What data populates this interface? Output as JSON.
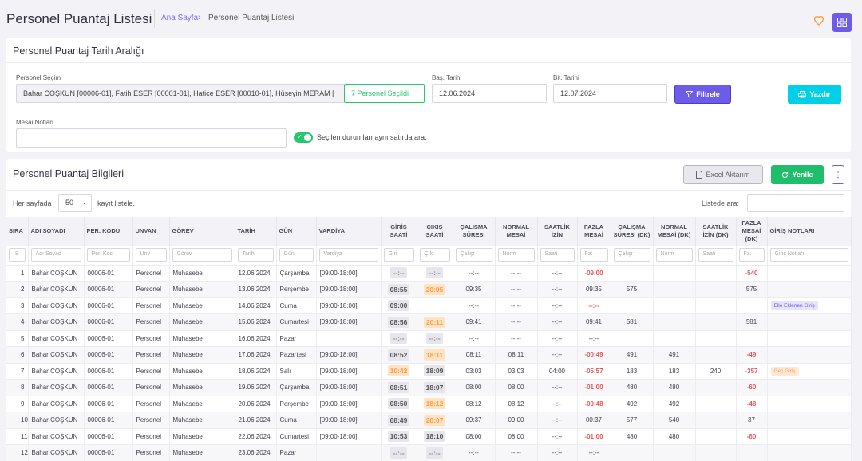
{
  "header": {
    "title": "Personel Puantaj Listesi",
    "breadcrumb": {
      "home": "Ana Sayfa",
      "current": "Personel Puantaj Listesi"
    }
  },
  "filter_card": {
    "title": "Personel Puantaj Tarih Aralığı",
    "personel_label": "Personel Seçim",
    "personel_value": "Bahar COŞKUN [00006-01], Fatih ESER [00001-01], Hatice ESER [00010-01], Hüseyin MERAM [",
    "selected_badge": "7 Personel Seçildi",
    "start_label": "Baş. Tarihi",
    "start_value": "12.06.2024",
    "end_label": "Bit. Tarihi",
    "end_value": "12.07.2024",
    "filter_button": "Filtrele",
    "print_button": "Yazdır",
    "notes_label": "Mesai Notları",
    "notes_value": "",
    "toggle_label": "Seçilen durumları aynı satırda ara.",
    "toggle_on": true
  },
  "info_card": {
    "title": "Personel Puantaj Bilgileri",
    "excel_button": "Excel Aktarım",
    "refresh_button": "Yenile",
    "per_page_prefix": "Her sayfada",
    "per_page_value": "50",
    "per_page_suffix": "kayıt listele.",
    "search_label": "Listede ara:"
  },
  "table": {
    "columns": [
      {
        "label": "SIRA",
        "filter": "S"
      },
      {
        "label": "ADI SOYADI",
        "filter": "Adı Soyad"
      },
      {
        "label": "PER. KODU",
        "filter": "Per. Koc"
      },
      {
        "label": "UNVAN",
        "filter": "Unv"
      },
      {
        "label": "GÖREV",
        "filter": "Görev"
      },
      {
        "label": "TARİH",
        "filter": "Tarih"
      },
      {
        "label": "GÜN",
        "filter": "Gün"
      },
      {
        "label": "VARDİYA",
        "filter": "Vardiya"
      },
      {
        "label": "GİRİŞ SAATİ",
        "filter": "Giri"
      },
      {
        "label": "ÇIKIŞ SAATİ",
        "filter": "Çık"
      },
      {
        "label": "ÇALIŞMA SÜRESİ",
        "filter": "Çalışr"
      },
      {
        "label": "NORMAL MESAİ",
        "filter": "Norm"
      },
      {
        "label": "SAATLİK İZİN",
        "filter": "Saati"
      },
      {
        "label": "FAZLA MESAİ",
        "filter": "Fa:"
      },
      {
        "label": "ÇALIŞMA SÜRESİ (DK)",
        "filter": "Çalışr"
      },
      {
        "label": "NORMAL MESAİ (DK)",
        "filter": "Norm"
      },
      {
        "label": "SAATLİK İZİN (DK)",
        "filter": "Saati"
      },
      {
        "label": "FAZLA MESAİ (DK)",
        "filter": "Fa:"
      },
      {
        "label": "GİRİŞ NOTLARI",
        "filter": "Giriş Notları"
      }
    ],
    "rows": [
      {
        "sira": "1",
        "ad": "Bahar COŞKUN",
        "kod": "00006-01",
        "unvan": "Personel",
        "gorev": "Muhasebe",
        "tarih": "12.06.2024",
        "gun": "Çarşamba",
        "vardiya": "[09:00-18:00]",
        "giris": "--:--",
        "giris_style": "dim",
        "cikis": "--:--",
        "cikis_style": "dim",
        "calisma": "--:--",
        "normal": "--:--",
        "izin": "--:--",
        "fazla": "-09:00",
        "fazla_neg": true,
        "calisma_dk": "",
        "normal_dk": "",
        "izin_dk": "",
        "fazla_dk": "-540",
        "fazla_dk_neg": true,
        "not": "",
        "not_style": ""
      },
      {
        "sira": "2",
        "ad": "Bahar COŞKUN",
        "kod": "00006-01",
        "unvan": "Personel",
        "gorev": "Muhasebe",
        "tarih": "13.06.2024",
        "gun": "Perşembe",
        "vardiya": "[09:00-18:00]",
        "giris": "08:55",
        "giris_style": "grey",
        "cikis": "20:05",
        "cikis_style": "orange",
        "calisma": "09:35",
        "normal": "--:--",
        "izin": "--:--",
        "fazla": "09:35",
        "fazla_neg": false,
        "calisma_dk": "575",
        "normal_dk": "",
        "izin_dk": "",
        "fazla_dk": "575",
        "fazla_dk_neg": false,
        "not": "",
        "not_style": ""
      },
      {
        "sira": "3",
        "ad": "Bahar COŞKUN",
        "kod": "00006-01",
        "unvan": "Personel",
        "gorev": "Muhasebe",
        "tarih": "14.06.2024",
        "gun": "Cuma",
        "vardiya": "[09:00-18:00]",
        "giris": "09:00",
        "giris_style": "grey",
        "cikis": "",
        "cikis_style": "",
        "calisma": "--:--",
        "normal": "--:--",
        "izin": "--:--",
        "fazla": "--:--",
        "fazla_neg": true,
        "calisma_dk": "",
        "normal_dk": "",
        "izin_dk": "",
        "fazla_dk": "",
        "fazla_dk_neg": false,
        "not": "Elle Eklenen Giriş",
        "not_style": "purple"
      },
      {
        "sira": "4",
        "ad": "Bahar COŞKUN",
        "kod": "00006-01",
        "unvan": "Personel",
        "gorev": "Muhasebe",
        "tarih": "15.06.2024",
        "gun": "Cumartesi",
        "vardiya": "[09:00-18:00]",
        "giris": "08:56",
        "giris_style": "grey",
        "cikis": "20:11",
        "cikis_style": "orange",
        "calisma": "09:41",
        "normal": "--:--",
        "izin": "--:--",
        "fazla": "09:41",
        "fazla_neg": false,
        "calisma_dk": "581",
        "normal_dk": "",
        "izin_dk": "",
        "fazla_dk": "581",
        "fazla_dk_neg": false,
        "not": "",
        "not_style": ""
      },
      {
        "sira": "5",
        "ad": "Bahar COŞKUN",
        "kod": "00006-01",
        "unvan": "Personel",
        "gorev": "Muhasebe",
        "tarih": "16.06.2024",
        "gun": "Pazar",
        "vardiya": "",
        "giris": "--:--",
        "giris_style": "dim",
        "cikis": "--:--",
        "cikis_style": "dim",
        "calisma": "--:--",
        "normal": "--:--",
        "izin": "--:--",
        "fazla": "--:--",
        "fazla_neg": false,
        "calisma_dk": "",
        "normal_dk": "",
        "izin_dk": "",
        "fazla_dk": "",
        "fazla_dk_neg": false,
        "not": "",
        "not_style": ""
      },
      {
        "sira": "6",
        "ad": "Bahar COŞKUN",
        "kod": "00006-01",
        "unvan": "Personel",
        "gorev": "Muhasebe",
        "tarih": "17.06.2024",
        "gun": "Pazartesi",
        "vardiya": "[09:00-18:00]",
        "giris": "08:52",
        "giris_style": "grey",
        "cikis": "18:11",
        "cikis_style": "orange",
        "calisma": "08:11",
        "normal": "08:11",
        "izin": "--:--",
        "fazla": "-00:49",
        "fazla_neg": true,
        "calisma_dk": "491",
        "normal_dk": "491",
        "izin_dk": "",
        "fazla_dk": "-49",
        "fazla_dk_neg": true,
        "not": "",
        "not_style": ""
      },
      {
        "sira": "7",
        "ad": "Bahar COŞKUN",
        "kod": "00006-01",
        "unvan": "Personel",
        "gorev": "Muhasebe",
        "tarih": "18.06.2024",
        "gun": "Salı",
        "vardiya": "[09:00-18:00]",
        "giris": "10:42",
        "giris_style": "orange",
        "cikis": "18:09",
        "cikis_style": "grey",
        "calisma": "03:03",
        "normal": "03:03",
        "izin": "04:00",
        "fazla": "-05:57",
        "fazla_neg": true,
        "calisma_dk": "183",
        "normal_dk": "183",
        "izin_dk": "240",
        "fazla_dk": "-357",
        "fazla_dk_neg": true,
        "not": "Geç Giriş",
        "not_style": "orange"
      },
      {
        "sira": "8",
        "ad": "Bahar COŞKUN",
        "kod": "00006-01",
        "unvan": "Personel",
        "gorev": "Muhasebe",
        "tarih": "19.06.2024",
        "gun": "Çarşamba",
        "vardiya": "[09:00-18:00]",
        "giris": "08:51",
        "giris_style": "grey",
        "cikis": "18:07",
        "cikis_style": "grey",
        "calisma": "08:00",
        "normal": "08:00",
        "izin": "--:--",
        "fazla": "-01:00",
        "fazla_neg": true,
        "calisma_dk": "480",
        "normal_dk": "480",
        "izin_dk": "",
        "fazla_dk": "-60",
        "fazla_dk_neg": true,
        "not": "",
        "not_style": ""
      },
      {
        "sira": "9",
        "ad": "Bahar COŞKUN",
        "kod": "00006-01",
        "unvan": "Personel",
        "gorev": "Muhasebe",
        "tarih": "20.06.2024",
        "gun": "Perşembe",
        "vardiya": "[09:00-18:00]",
        "giris": "08:50",
        "giris_style": "grey",
        "cikis": "18:12",
        "cikis_style": "orange",
        "calisma": "08:12",
        "normal": "08:12",
        "izin": "--:--",
        "fazla": "-00:48",
        "fazla_neg": true,
        "calisma_dk": "492",
        "normal_dk": "492",
        "izin_dk": "",
        "fazla_dk": "-48",
        "fazla_dk_neg": true,
        "not": "",
        "not_style": ""
      },
      {
        "sira": "10",
        "ad": "Bahar COŞKUN",
        "kod": "00006-01",
        "unvan": "Personel",
        "gorev": "Muhasebe",
        "tarih": "21.06.2024",
        "gun": "Cuma",
        "vardiya": "[09:00-18:00]",
        "giris": "08:49",
        "giris_style": "grey",
        "cikis": "20:07",
        "cikis_style": "orange",
        "calisma": "09:37",
        "normal": "09:00",
        "izin": "--:--",
        "fazla": "00:37",
        "fazla_neg": false,
        "calisma_dk": "577",
        "normal_dk": "540",
        "izin_dk": "",
        "fazla_dk": "37",
        "fazla_dk_neg": false,
        "not": "",
        "not_style": ""
      },
      {
        "sira": "11",
        "ad": "Bahar COŞKUN",
        "kod": "00006-01",
        "unvan": "Personel",
        "gorev": "Muhasebe",
        "tarih": "22.06.2024",
        "gun": "Cumartesi",
        "vardiya": "[09:00-18:00]",
        "giris": "10:53",
        "giris_style": "grey",
        "cikis": "18:10",
        "cikis_style": "grey",
        "calisma": "08:00",
        "normal": "08:00",
        "izin": "--:--",
        "fazla": "-01:00",
        "fazla_neg": true,
        "calisma_dk": "480",
        "normal_dk": "480",
        "izin_dk": "",
        "fazla_dk": "-60",
        "fazla_dk_neg": true,
        "not": "",
        "not_style": ""
      },
      {
        "sira": "12",
        "ad": "Bahar COŞKUN",
        "kod": "00006-01",
        "unvan": "Personel",
        "gorev": "Muhasebe",
        "tarih": "23.06.2024",
        "gun": "Pazar",
        "vardiya": "",
        "giris": "--:--",
        "giris_style": "dim",
        "cikis": "--:--",
        "cikis_style": "dim",
        "calisma": "--:--",
        "normal": "--:--",
        "izin": "--:--",
        "fazla": "--:--",
        "fazla_neg": false,
        "calisma_dk": "",
        "normal_dk": "",
        "izin_dk": "",
        "fazla_dk": "",
        "fazla_dk_neg": false,
        "not": "",
        "not_style": ""
      }
    ]
  },
  "colors": {
    "primary": "#6c5ce7",
    "success": "#28c76f",
    "info": "#00cfe8",
    "warning": "#ff9f43",
    "danger": "#ea5455"
  },
  "icons": {
    "favorite": "heart-icon",
    "apps": "grid-icon",
    "filter": "filter-icon",
    "print": "printer-icon",
    "excel": "file-icon",
    "refresh": "refresh-icon",
    "more": "more-vertical-icon"
  }
}
